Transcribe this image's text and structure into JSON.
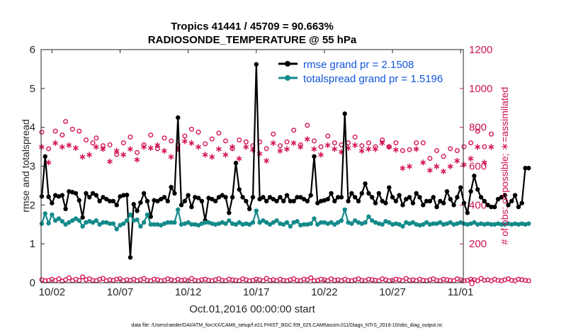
{
  "chart_data": {
    "type": "line",
    "title_line1": "Tropics 41441 / 45709 = 90.663%",
    "title_line2": "RADIOSONDE_TEMPERATURE @ 55 hPa",
    "xlabel": "Oct.01,2016 00:00:00 start",
    "ylabel_left": "rmse and totalspread",
    "ylabel_right": "# of obs: o=possible; ∗=assimilated",
    "footer": "data file: /Users/raeder/DAI/ATM_forcXX/CAM6_setup/f.e21.FHIST_BGC.f09_025.CAM6assim.011/Diags_NTrS_2016-10/obs_diag_output.nc",
    "x_ticks": [
      {
        "label": "10/02",
        "day": 2
      },
      {
        "label": "10/07",
        "day": 7
      },
      {
        "label": "10/12",
        "day": 12
      },
      {
        "label": "10/17",
        "day": 17
      },
      {
        "label": "10/22",
        "day": 22
      },
      {
        "label": "10/27",
        "day": 27
      },
      {
        "label": "11/01",
        "day": 32
      }
    ],
    "xlim_days": [
      1.2,
      32.2
    ],
    "x_start_day": 1.25,
    "x_step_days": 0.25,
    "ylim_left": [
      0,
      6
    ],
    "yticks_left": [
      "0",
      "1",
      "2",
      "3",
      "4",
      "5",
      "6"
    ],
    "ylim_right": [
      0,
      1200
    ],
    "yticks_right": [
      "0",
      "200",
      "400",
      "600",
      "800",
      "1000",
      "1200"
    ],
    "colors": {
      "rmse": "#000000",
      "spread": "#138a8a",
      "obs": "#d4145a",
      "legend_text": "#1155dd"
    },
    "series": [
      {
        "name": "rmse grand pr = 2.1508",
        "axis": "left",
        "values": [
          2.22,
          3.25,
          2.21,
          2.05,
          2.25,
          2.22,
          2.25,
          1.9,
          2.35,
          2.33,
          2.3,
          2.12,
          1.68,
          2.3,
          2.2,
          2.3,
          2.25,
          2.1,
          2.2,
          2.15,
          2.1,
          2.1,
          2.0,
          2.22,
          2.25,
          2.26,
          0.65,
          2.02,
          1.85,
          2.06,
          2.3,
          2.1,
          1.7,
          2.12,
          2.1,
          2.15,
          2.2,
          2.1,
          2.46,
          2.3,
          4.25,
          2.0,
          2.1,
          2.25,
          1.95,
          2.2,
          2.18,
          2.1,
          1.6,
          2.18,
          2.15,
          2.1,
          2.2,
          2.25,
          2.2,
          1.8,
          2.2,
          3.08,
          2.4,
          2.2,
          2.1,
          1.9,
          2.2,
          5.62,
          2.15,
          2.2,
          2.1,
          2.2,
          2.15,
          2.1,
          2.2,
          2.1,
          2.25,
          2.1,
          2.1,
          2.2,
          2.2,
          2.15,
          2.1,
          2.25,
          3.25,
          2.05,
          2.1,
          2.12,
          2.15,
          2.3,
          2.1,
          2.2,
          2.2,
          4.35,
          2.1,
          2.3,
          2.2,
          2.1,
          2.3,
          2.55,
          2.3,
          2.2,
          2.05,
          2.3,
          2.1,
          2.05,
          2.45,
          2.2,
          2.1,
          2.25,
          2.0,
          2.15,
          2.2,
          2.05,
          2.3,
          2.2,
          2.0,
          2.1,
          2.1,
          2.2,
          1.95,
          2.1,
          2.05,
          2.35,
          2.15,
          2.0,
          2.2,
          2.45,
          2.05,
          1.8,
          2.35,
          2.75,
          2.4,
          2.2,
          2.1,
          2.0,
          1.95,
          1.95,
          2.15,
          2.2,
          2.25,
          2.0,
          2.1,
          2.25,
          1.95,
          2.05,
          2.95,
          2.95
        ]
      },
      {
        "name": "totalspread grand pr = 1.5196",
        "axis": "left",
        "values": [
          1.52,
          1.78,
          1.53,
          1.75,
          1.6,
          1.65,
          1.58,
          1.5,
          1.55,
          1.6,
          1.65,
          1.6,
          1.45,
          1.55,
          1.58,
          1.55,
          1.6,
          1.5,
          1.55,
          1.55,
          1.52,
          1.52,
          1.38,
          1.48,
          1.52,
          1.6,
          1.75,
          1.6,
          1.62,
          1.45,
          1.55,
          1.75,
          1.5,
          1.5,
          1.5,
          1.48,
          1.52,
          1.55,
          1.55,
          1.55,
          1.88,
          1.5,
          1.52,
          1.55,
          1.5,
          1.5,
          1.48,
          1.52,
          1.55,
          1.55,
          1.52,
          1.5,
          1.52,
          1.55,
          1.52,
          1.6,
          1.52,
          1.5,
          1.55,
          1.5,
          1.52,
          1.5,
          1.55,
          1.85,
          1.55,
          1.6,
          1.55,
          1.5,
          1.55,
          1.6,
          1.52,
          1.5,
          1.55,
          1.45,
          1.55,
          1.58,
          1.48,
          1.5,
          1.5,
          1.52,
          1.65,
          1.5,
          1.55,
          1.55,
          1.52,
          1.55,
          1.5,
          1.55,
          1.6,
          1.88,
          1.55,
          1.52,
          1.6,
          1.55,
          1.52,
          1.55,
          1.7,
          1.6,
          1.55,
          1.52,
          1.5,
          1.58,
          1.55,
          1.5,
          1.52,
          1.5,
          1.45,
          1.55,
          1.52,
          1.55,
          1.5,
          1.48,
          1.5,
          1.55,
          1.5,
          1.52,
          1.52,
          1.55,
          1.5,
          1.52,
          1.55,
          1.5,
          1.52,
          1.55,
          1.52,
          1.5,
          1.52,
          1.55,
          1.5,
          1.52,
          1.5,
          1.52,
          1.5,
          1.5,
          1.52,
          1.5,
          1.5,
          1.52,
          1.5,
          1.52,
          1.5,
          1.52,
          1.5,
          1.52
        ]
      },
      {
        "name": "obs possible",
        "axis": "right",
        "marker": "circle",
        "values": [
          775,
          0,
          690,
          0,
          780,
          0,
          760,
          830,
          0,
          790,
          0,
          780,
          0,
          735,
          0,
          720,
          745,
          0,
          705,
          0,
          710,
          0,
          660,
          0,
          720,
          0,
          750,
          0,
          670,
          0,
          710,
          0,
          760,
          0,
          690,
          0,
          745,
          0,
          730,
          0,
          710,
          0,
          755,
          0,
          790,
          0,
          775,
          0,
          715,
          0,
          740,
          0,
          770,
          0,
          730,
          0,
          690,
          0,
          735,
          0,
          725,
          0,
          705,
          0,
          725,
          0,
          690,
          0,
          765,
          0,
          705,
          0,
          725,
          0,
          785,
          0,
          710,
          0,
          810,
          0,
          730,
          0,
          700,
          0,
          755,
          0,
          720,
          0,
          710,
          0,
          720,
          0,
          750,
          0,
          705,
          0,
          720,
          0,
          700,
          0,
          735,
          0,
          700,
          0,
          720,
          0,
          680,
          0,
          685,
          0,
          720,
          0,
          720,
          0,
          640,
          0,
          680,
          0,
          650,
          0,
          690,
          0,
          680,
          0,
          700,
          0,
          720,
          0,
          780,
          0,
          700,
          0,
          765
        ]
      },
      {
        "name": "obs assimilated",
        "axis": "right",
        "marker": "star",
        "values": [
          700,
          0,
          620,
          0,
          720,
          0,
          700,
          0,
          710,
          0,
          695,
          0,
          650,
          0,
          660,
          0,
          700,
          0,
          690,
          0,
          625,
          0,
          680,
          0,
          660,
          0,
          690,
          0,
          635,
          0,
          700,
          0,
          695,
          0,
          710,
          0,
          680,
          0,
          650,
          0,
          690,
          0,
          730,
          0,
          720,
          0,
          700,
          0,
          660,
          0,
          650,
          0,
          690,
          0,
          660,
          0,
          700,
          0,
          640,
          0,
          700,
          0,
          685,
          0,
          665,
          0,
          630,
          0,
          720,
          0,
          680,
          0,
          690,
          0,
          720,
          0,
          700,
          0,
          740,
          0,
          690,
          0,
          660,
          0,
          710,
          0,
          690,
          0,
          675,
          0,
          695,
          0,
          710,
          0,
          680,
          0,
          690,
          0,
          690,
          0,
          720,
          0,
          700,
          0,
          685,
          0,
          590,
          0,
          600,
          0,
          690,
          0,
          620,
          0,
          580,
          0,
          600,
          0,
          575,
          0,
          600,
          0,
          630,
          0,
          610,
          0,
          640,
          0,
          700,
          0,
          620,
          0,
          700
        ]
      },
      {
        "name": "obs bottom possible",
        "axis": "right",
        "marker": "circle",
        "values": [
          15,
          10,
          12,
          18,
          10,
          20,
          8,
          15,
          25,
          10,
          18,
          12,
          30,
          15,
          20,
          12,
          10,
          18,
          22,
          10,
          15,
          12,
          18,
          20,
          10,
          15,
          12,
          18,
          10,
          15,
          22,
          12,
          10,
          18,
          15,
          10,
          12,
          20,
          15,
          10,
          18,
          12,
          15,
          10,
          22,
          12,
          10,
          15,
          18,
          12,
          10,
          15,
          20,
          12,
          10,
          18,
          15,
          12,
          10,
          20,
          15,
          10,
          12,
          18,
          15,
          10,
          22,
          12,
          15,
          10,
          18,
          12,
          10,
          15,
          20,
          12,
          10,
          18,
          15,
          25,
          10,
          12,
          18,
          15,
          10,
          20,
          12,
          15,
          10,
          18,
          12,
          10,
          15,
          20,
          12,
          10,
          18,
          15,
          12,
          10,
          20,
          15,
          10,
          12,
          18,
          15,
          10,
          22,
          12,
          15,
          10,
          18,
          12,
          10,
          15,
          20,
          12,
          10,
          18,
          15,
          12,
          10,
          20,
          15,
          10,
          12,
          18,
          15,
          10,
          22,
          12,
          15,
          10,
          18,
          12,
          10,
          15,
          20,
          12,
          10,
          18,
          15,
          12,
          10
        ]
      }
    ]
  }
}
